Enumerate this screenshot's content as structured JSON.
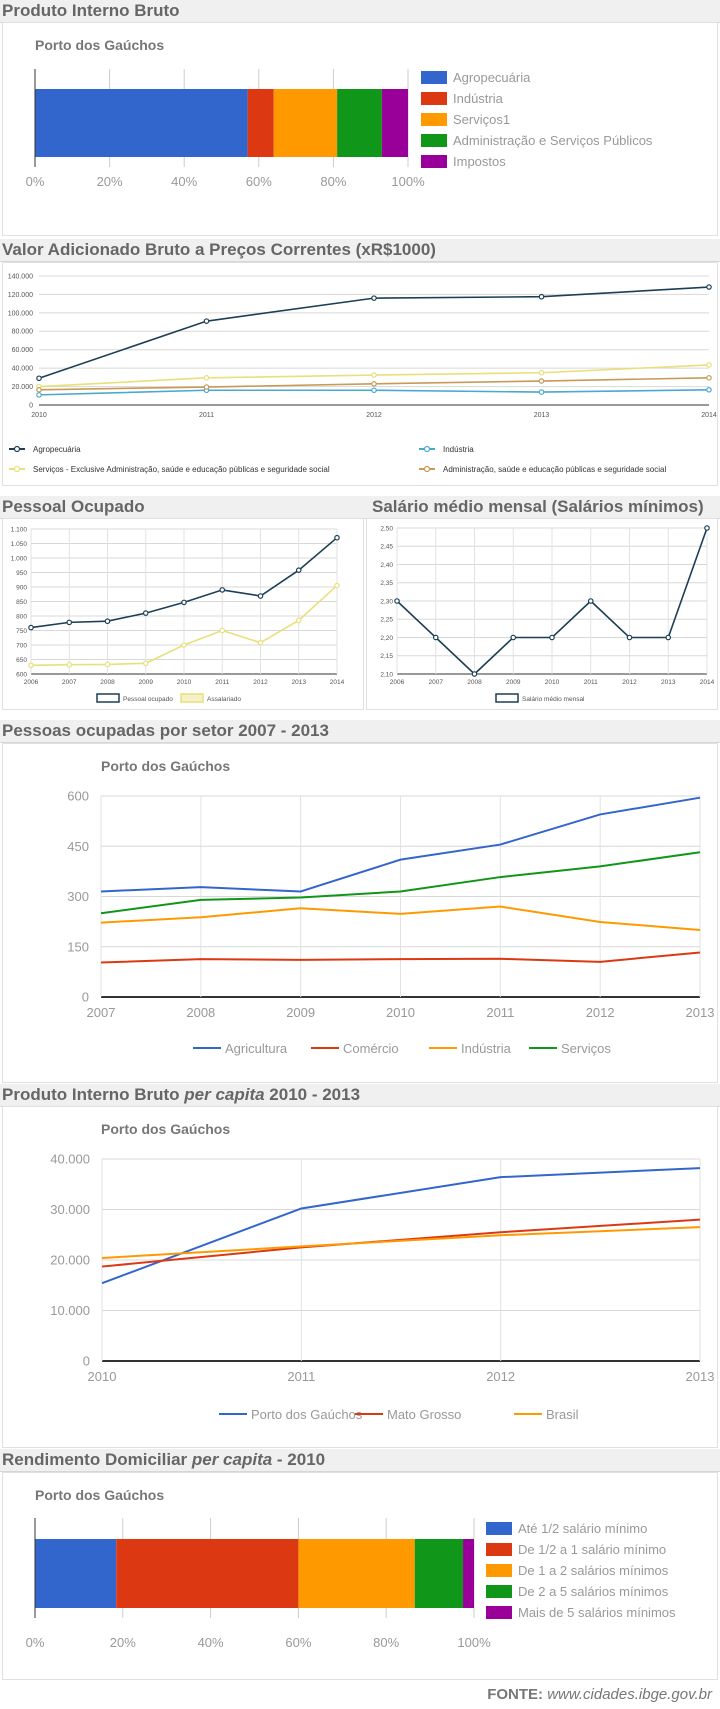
{
  "sections": {
    "pib": {
      "title": "Produto Interno Bruto"
    },
    "vab": {
      "title": "Valor Adicionado Bruto a Preços Correntes (xR$1000)"
    },
    "pessoal": {
      "title": "Pessoal Ocupado"
    },
    "salario": {
      "title": "Salário médio mensal (Salários mínimos)"
    },
    "setor": {
      "title": "Pessoas ocupadas por setor 2007 - 2013"
    },
    "pibpc": {
      "title_pre": "Produto Interno Bruto ",
      "title_em": "per capita",
      "title_post": " 2010 - 2013"
    },
    "rend": {
      "title_pre": "Rendimento Domiciliar ",
      "title_em": "per capita",
      "title_post": " - 2010"
    }
  },
  "source": {
    "label": "FONTE:",
    "url": "www.cidades.ibge.gov.br"
  },
  "chart_data": [
    {
      "id": "pib",
      "type": "bar",
      "subtitle": "Porto dos Gaúchos",
      "stacked_percent": true,
      "series": [
        {
          "name": "Agropecuária",
          "value": 57,
          "color": "#3366cc"
        },
        {
          "name": "Indústria",
          "value": 7,
          "color": "#dc3912"
        },
        {
          "name": "Serviços1",
          "value": 17,
          "color": "#ff9900"
        },
        {
          "name": "Administração e Serviços Públicos",
          "value": 12,
          "color": "#109618"
        },
        {
          "name": "Impostos",
          "value": 7,
          "color": "#990099"
        }
      ],
      "xticks": [
        "0%",
        "20%",
        "40%",
        "60%",
        "80%",
        "100%"
      ],
      "legend_position": "right"
    },
    {
      "id": "vab",
      "type": "line",
      "x": [
        "2010",
        "2011",
        "2012",
        "2013",
        "2014"
      ],
      "ylim": [
        0,
        140000
      ],
      "yticks": [
        "0",
        "20.000",
        "40.000",
        "60.000",
        "80.000",
        "100.000",
        "120.000",
        "140.000"
      ],
      "series": [
        {
          "name": "Agropecuária",
          "values": [
            29000,
            91000,
            116000,
            117500,
            128000
          ],
          "color": "#1c3f55"
        },
        {
          "name": "Indústria",
          "values": [
            11000,
            16000,
            16000,
            14000,
            16500
          ],
          "color": "#4aa9cf"
        },
        {
          "name": "Serviços - Exclusive Administração, saúde e educação públicas e seguridade social",
          "values": [
            20000,
            29500,
            32500,
            35000,
            43500
          ],
          "color": "#e8e07a"
        },
        {
          "name": "Administração, saúde e educação públicas e seguridade social",
          "values": [
            16500,
            19500,
            23000,
            26000,
            29500
          ],
          "color": "#c79a57"
        }
      ],
      "legend_position": "bottom"
    },
    {
      "id": "pessoal",
      "type": "line",
      "x": [
        "2006",
        "2007",
        "2008",
        "2009",
        "2010",
        "2011",
        "2012",
        "2013",
        "2014"
      ],
      "ylim": [
        600,
        1100
      ],
      "yticks": [
        "600",
        "650",
        "700",
        "750",
        "800",
        "850",
        "900",
        "950",
        "1.000",
        "1.050",
        "1.100"
      ],
      "series": [
        {
          "name": "Pessoal ocupado",
          "values": [
            760,
            778,
            782,
            810,
            847,
            890,
            869,
            958,
            1070
          ],
          "color": "#1c3f55"
        },
        {
          "name": "Assalariado",
          "values": [
            630,
            632,
            633,
            637,
            700,
            750,
            708,
            785,
            905
          ],
          "color": "#e8e07a"
        }
      ],
      "legend_position": "bottom"
    },
    {
      "id": "salario",
      "type": "line",
      "x": [
        "2006",
        "2007",
        "2008",
        "2009",
        "2010",
        "2011",
        "2012",
        "2013",
        "2014"
      ],
      "ylim": [
        2.1,
        2.5
      ],
      "yticks": [
        "2,10",
        "2,15",
        "2,20",
        "2,25",
        "2,30",
        "2,35",
        "2,40",
        "2,45",
        "2,50"
      ],
      "series": [
        {
          "name": "Salário médio mensal",
          "values": [
            2.3,
            2.2,
            2.1,
            2.2,
            2.2,
            2.3,
            2.2,
            2.2,
            2.5
          ],
          "color": "#1c3f55"
        }
      ],
      "legend_position": "bottom"
    },
    {
      "id": "setor",
      "type": "line",
      "subtitle": "Porto dos Gaúchos",
      "x": [
        "2007",
        "2008",
        "2009",
        "2010",
        "2011",
        "2012",
        "2013"
      ],
      "ylim": [
        0,
        600
      ],
      "yticks": [
        "0",
        "150",
        "300",
        "450",
        "600"
      ],
      "series": [
        {
          "name": "Agricultura",
          "values": [
            315,
            328,
            315,
            410,
            455,
            545,
            595
          ],
          "color": "#3366cc"
        },
        {
          "name": "Comércio",
          "values": [
            103,
            113,
            111,
            113,
            114,
            105,
            133
          ],
          "color": "#dc3912"
        },
        {
          "name": "Indústria",
          "values": [
            222,
            238,
            265,
            248,
            270,
            224,
            200
          ],
          "color": "#ff9900"
        },
        {
          "name": "Serviços",
          "values": [
            250,
            290,
            297,
            315,
            358,
            390,
            432
          ],
          "color": "#109618"
        }
      ],
      "legend_position": "bottom"
    },
    {
      "id": "pibpc",
      "type": "line",
      "subtitle": "Porto dos Gaúchos",
      "x": [
        "2010",
        "2011",
        "2012",
        "2013"
      ],
      "ylim": [
        0,
        40000
      ],
      "yticks": [
        "0",
        "10.000",
        "20.000",
        "30.000",
        "40.000"
      ],
      "series": [
        {
          "name": "Porto dos Gaúchos",
          "values": [
            15400,
            30200,
            36400,
            38200
          ],
          "color": "#3366cc"
        },
        {
          "name": "Mato Grosso",
          "values": [
            18700,
            22500,
            25500,
            28000
          ],
          "color": "#dc3912"
        },
        {
          "name": "Brasil",
          "values": [
            20400,
            22700,
            24900,
            26500
          ],
          "color": "#ff9900"
        }
      ],
      "legend_position": "bottom"
    },
    {
      "id": "rend",
      "type": "bar",
      "subtitle": "Porto dos Gaúchos",
      "stacked_percent": true,
      "series": [
        {
          "name": "Até 1/2 salário mínimo",
          "value": 18.5,
          "color": "#3366cc"
        },
        {
          "name": "De 1/2 a 1 salário mínimo",
          "value": 41.5,
          "color": "#dc3912"
        },
        {
          "name": "De 1 a 2 salários mínimos",
          "value": 26.5,
          "color": "#ff9900"
        },
        {
          "name": "De 2 a 5 salários mínimos",
          "value": 11,
          "color": "#109618"
        },
        {
          "name": "Mais de 5 salários mínimos",
          "value": 2.5,
          "color": "#990099"
        }
      ],
      "xticks": [
        "0%",
        "20%",
        "40%",
        "60%",
        "80%",
        "100%"
      ],
      "legend_position": "right"
    }
  ]
}
